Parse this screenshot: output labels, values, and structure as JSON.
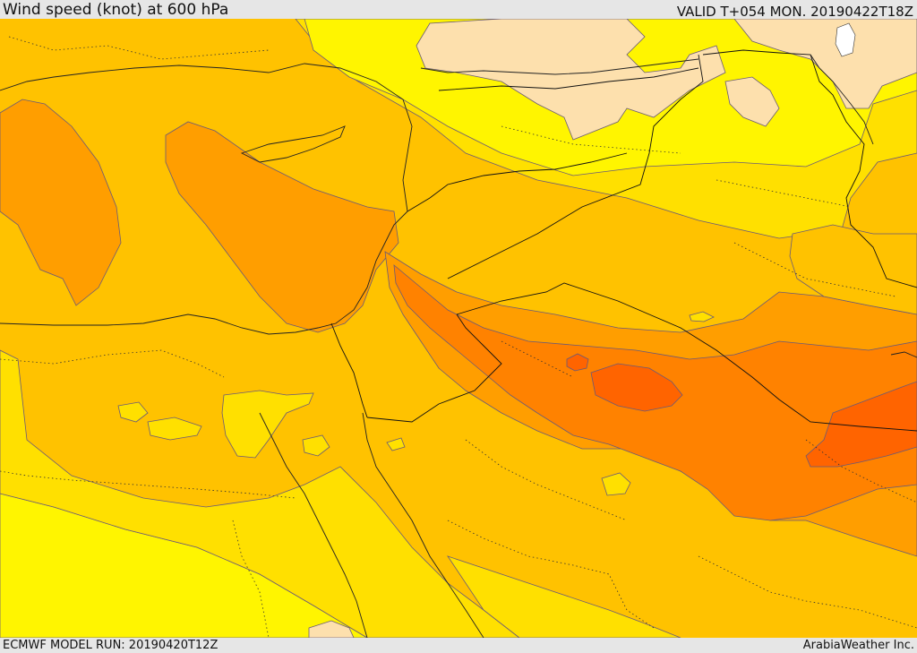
{
  "header": {
    "title": "Wind speed (knot) at 600 hPa",
    "valid": "VALID T+054 MON. 20190422T18Z"
  },
  "footer": {
    "model_run": "ECMWF MODEL RUN: 20190420T12Z",
    "credit": "ArabiaWeather Inc."
  },
  "colors": {
    "level_1": "#fff500",
    "level_2": "#ffe000",
    "level_3": "#ffc200",
    "level_4": "#ff9e00",
    "level_5": "#ff8200",
    "level_6": "#ff6400",
    "light": "#fde0ad",
    "water": "#ffffff",
    "contour": "#6a5a78",
    "border": "#111111"
  }
}
